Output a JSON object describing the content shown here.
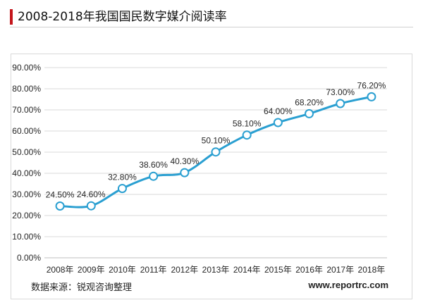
{
  "header": {
    "title": "2008-2018年我国国民数字媒介阅读率"
  },
  "footer": {
    "source": "数据来源：锐观咨询整理",
    "website": "www.reportrc.com"
  },
  "colors": {
    "accent": "#c4161c",
    "line": "#2a9fd1",
    "grid": "#d9d9d9",
    "text": "#262626"
  },
  "chart_data": {
    "type": "line",
    "title": "",
    "xlabel": "",
    "ylabel": "",
    "categories": [
      "2008年",
      "2009年",
      "2010年",
      "2011年",
      "2012年",
      "2013年",
      "2014年",
      "2015年",
      "2016年",
      "2017年",
      "2018年"
    ],
    "values": [
      24.5,
      24.6,
      32.8,
      38.6,
      40.3,
      50.1,
      58.1,
      64.0,
      68.2,
      73.0,
      76.2
    ],
    "data_labels": [
      "24.50%",
      "24.60%",
      "32.80%",
      "38.60%",
      "40.30%",
      "50.10%",
      "58.10%",
      "64.00%",
      "68.20%",
      "73.00%",
      "76.20%"
    ],
    "y_ticks": [
      "0.00%",
      "10.00%",
      "20.00%",
      "30.00%",
      "40.00%",
      "50.00%",
      "60.00%",
      "70.00%",
      "80.00%",
      "90.00%"
    ],
    "ylim": [
      0,
      90
    ],
    "grid": true,
    "smooth": true,
    "markers": "hollow-circle"
  }
}
